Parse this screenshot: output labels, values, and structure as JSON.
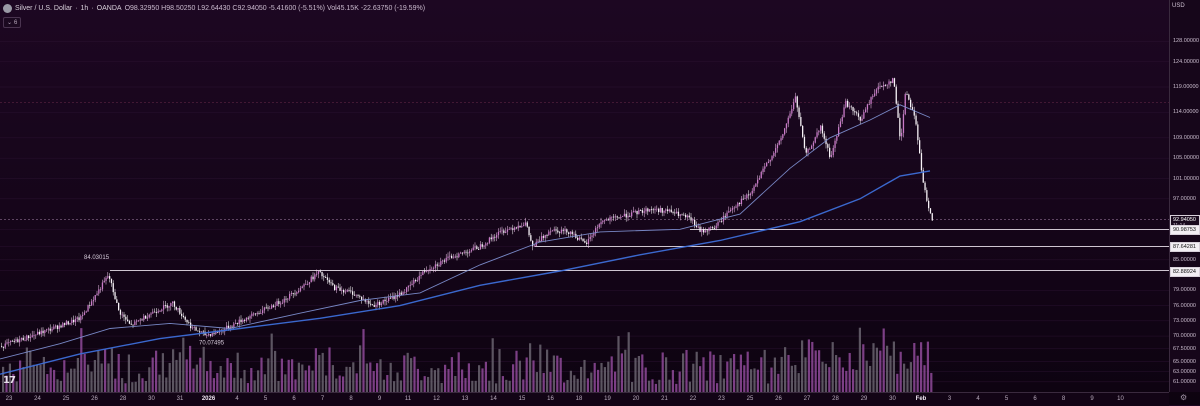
{
  "header": {
    "symbol": "Silver / U.S. Dollar",
    "interval": "1h",
    "source": "OANDA",
    "ohlc": "O98.32950 H98.50250 L92.64430 C92.94050 -5.41600 (-5.51%) Vol45.15K -22.63750 (-19.59%)",
    "collapse_count": "6"
  },
  "price_scale": {
    "currency": "USD",
    "ticks": [
      "128.00000",
      "124.00000",
      "119.00000",
      "114.00000",
      "109.00000",
      "105.00000",
      "101.00000",
      "97.00000",
      "90.98753",
      "87.64281",
      "85.00000",
      "82.88924",
      "79.00000",
      "76.00000",
      "73.00000",
      "70.00000",
      "67.50000",
      "65.00000",
      "63.00000",
      "61.00000"
    ],
    "labels": [
      {
        "text": "92.94050",
        "sub": "11:14",
        "kind": "last"
      },
      {
        "text": "90.98753",
        "kind": "line"
      },
      {
        "text": "87.64281",
        "kind": "line"
      },
      {
        "text": "82.88924",
        "kind": "line"
      }
    ]
  },
  "time_axis": [
    "23",
    "24",
    "25",
    "26",
    "28",
    "30",
    "31",
    "2026",
    "4",
    "5",
    "6",
    "7",
    "8",
    "9",
    "11",
    "12",
    "13",
    "14",
    "15",
    "16",
    "18",
    "19",
    "20",
    "21",
    "22",
    "23",
    "25",
    "26",
    "27",
    "28",
    "29",
    "30",
    "Feb",
    "3",
    "4",
    "5",
    "6",
    "8",
    "9",
    "10"
  ],
  "annotations": [
    {
      "text": "84.03015",
      "kind": "high"
    },
    {
      "text": "70.07495",
      "kind": "low"
    }
  ],
  "chart_data": {
    "type": "line",
    "title": "",
    "xlabel": "",
    "ylabel": "",
    "ylim": [
      59,
      131
    ],
    "x_range": [
      0,
      1168
    ],
    "series": [
      {
        "color": "#f7c3f3",
        "values": [
          [
            0,
            68.0
          ],
          [
            45,
            71.0
          ],
          [
            80,
            73.5
          ],
          [
            108,
            82.0
          ],
          [
            118,
            75.0
          ],
          [
            130,
            72.0
          ],
          [
            150,
            74.5
          ],
          [
            172,
            76.5
          ],
          [
            192,
            71.5
          ],
          [
            205,
            70.2
          ],
          [
            220,
            71.0
          ],
          [
            240,
            73.0
          ],
          [
            262,
            75.0
          ],
          [
            282,
            77.0
          ],
          [
            300,
            79.5
          ],
          [
            318,
            82.5
          ],
          [
            334,
            79.5
          ],
          [
            352,
            78.5
          ],
          [
            372,
            76.0
          ],
          [
            392,
            77.5
          ],
          [
            405,
            79.0
          ],
          [
            425,
            83.0
          ],
          [
            450,
            85.5
          ],
          [
            478,
            87.5
          ],
          [
            500,
            90.5
          ],
          [
            525,
            92.2
          ],
          [
            532,
            87.5
          ],
          [
            550,
            91.0
          ],
          [
            570,
            90.5
          ],
          [
            585,
            88.0
          ],
          [
            600,
            92.5
          ],
          [
            630,
            94.0
          ],
          [
            650,
            95.0
          ],
          [
            670,
            94.5
          ],
          [
            690,
            93.0
          ],
          [
            700,
            90.5
          ],
          [
            715,
            91.5
          ],
          [
            730,
            95.0
          ],
          [
            750,
            98.0
          ],
          [
            765,
            103.5
          ],
          [
            780,
            108.5
          ],
          [
            795,
            117.0
          ],
          [
            805,
            105.5
          ],
          [
            820,
            111.0
          ],
          [
            830,
            105.0
          ],
          [
            845,
            116.0
          ],
          [
            860,
            112.5
          ],
          [
            875,
            118.5
          ],
          [
            893,
            120.5
          ],
          [
            900,
            108.0
          ],
          [
            905,
            118.5
          ],
          [
            915,
            112.5
          ],
          [
            922,
            100.5
          ],
          [
            928,
            95.5
          ],
          [
            932,
            92.9
          ]
        ]
      },
      {
        "color": "#3d6ed8",
        "values": [
          [
            0,
            62.5
          ],
          [
            80,
            66.5
          ],
          [
            160,
            69.5
          ],
          [
            240,
            71.5
          ],
          [
            320,
            73.5
          ],
          [
            400,
            76.0
          ],
          [
            480,
            80.0
          ],
          [
            560,
            82.8
          ],
          [
            640,
            86.0
          ],
          [
            720,
            88.8
          ],
          [
            800,
            92.5
          ],
          [
            860,
            97.0
          ],
          [
            900,
            101.5
          ],
          [
            930,
            102.5
          ]
        ]
      },
      {
        "color": "#7d8ecf",
        "values": [
          [
            0,
            65.5
          ],
          [
            60,
            68.5
          ],
          [
            110,
            71.5
          ],
          [
            170,
            72.5
          ],
          [
            230,
            71.5
          ],
          [
            300,
            74.5
          ],
          [
            360,
            77.0
          ],
          [
            420,
            78.5
          ],
          [
            480,
            84.0
          ],
          [
            540,
            88.5
          ],
          [
            600,
            90.5
          ],
          [
            680,
            91.0
          ],
          [
            740,
            94.0
          ],
          [
            790,
            103.0
          ],
          [
            830,
            109.0
          ],
          [
            870,
            112.5
          ],
          [
            900,
            115.5
          ],
          [
            930,
            113.0
          ]
        ]
      }
    ],
    "levels": [
      {
        "value": 90.98753,
        "from_x": 690
      },
      {
        "value": 87.64281,
        "from_x": 535
      },
      {
        "value": 82.88924,
        "from_x": 110
      }
    ],
    "volume": {
      "max_label": "",
      "scale_max": 72
    }
  }
}
